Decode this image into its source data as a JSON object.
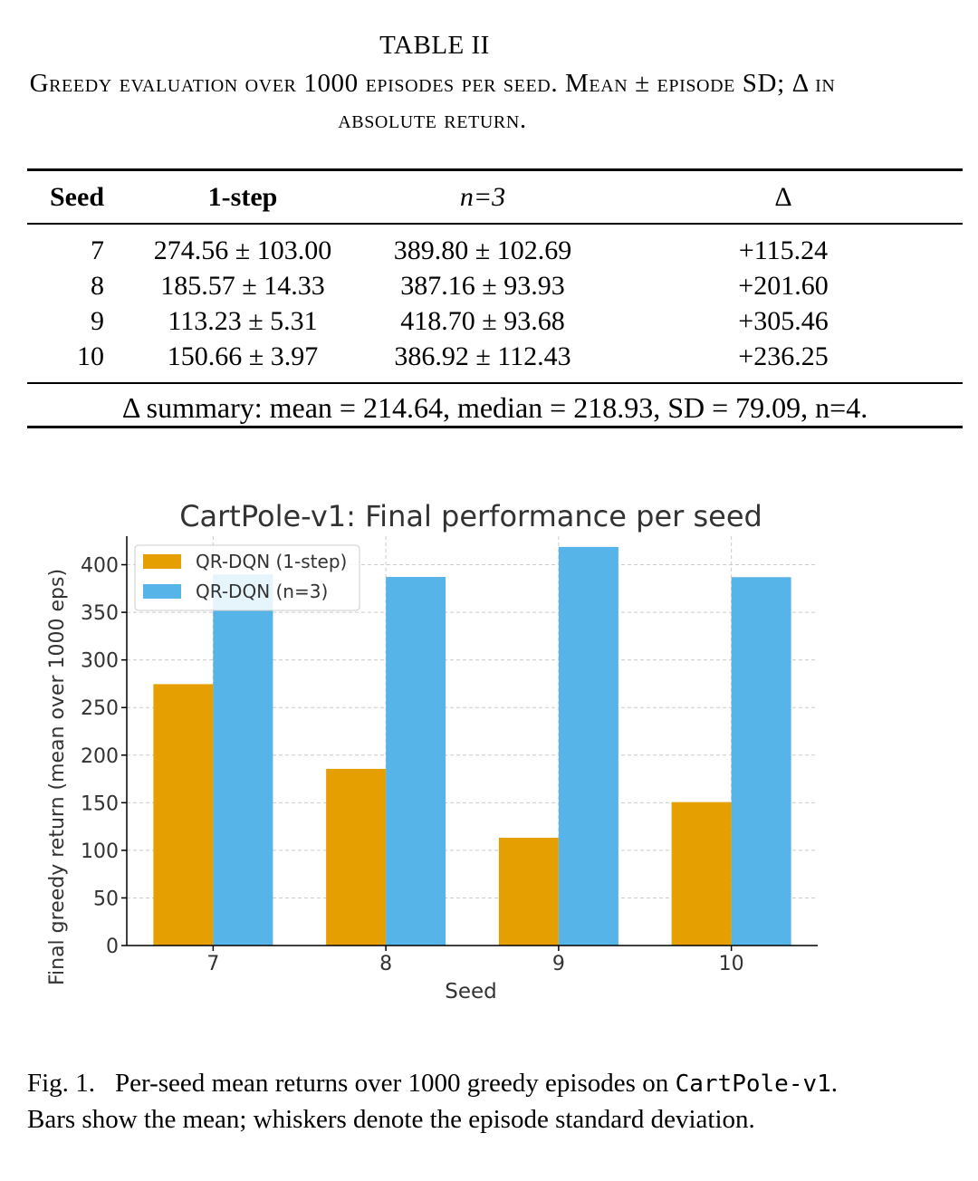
{
  "table": {
    "title": "TABLE II",
    "caption": "Greedy evaluation over 1000 episodes per seed. Mean ± episode SD; Δ in absolute return.",
    "headers": {
      "seed": "Seed",
      "one_step": "1-step",
      "n3": "n=3",
      "delta": "Δ"
    },
    "rows": [
      {
        "seed": "7",
        "one_step": "274.56 ± 103.00",
        "n3": "389.80 ± 102.69",
        "delta": "+115.24"
      },
      {
        "seed": "8",
        "one_step": "185.57 ± 14.33",
        "n3": "387.16 ± 93.93",
        "delta": "+201.60"
      },
      {
        "seed": "9",
        "one_step": "113.23 ± 5.31",
        "n3": "418.70 ± 93.68",
        "delta": "+305.46"
      },
      {
        "seed": "10",
        "one_step": "150.66 ± 3.97",
        "n3": "386.92 ± 112.43",
        "delta": "+236.25"
      }
    ],
    "summary": "Δ summary: mean = 214.64, median = 218.93, SD = 79.09, n=4."
  },
  "chart_data": {
    "type": "bar",
    "title": "CartPole-v1: Final performance per seed",
    "xlabel": "Seed",
    "ylabel": "Final greedy return (mean over 1000 eps)",
    "categories": [
      "7",
      "8",
      "9",
      "10"
    ],
    "series": [
      {
        "name": "QR-DQN (1-step)",
        "color": "#E69F00",
        "values": [
          274.56,
          185.57,
          113.23,
          150.66
        ]
      },
      {
        "name": "QR-DQN (n=3)",
        "color": "#56B4E9",
        "values": [
          389.8,
          387.16,
          418.7,
          386.92
        ]
      }
    ],
    "ylim": [
      0,
      430
    ],
    "yticks": [
      0,
      50,
      100,
      150,
      200,
      250,
      300,
      350,
      400
    ],
    "grid": true,
    "legend": "top-left"
  },
  "figure": {
    "label": "Fig. 1.",
    "text_before": "Per-seed mean returns over 1000 greedy episodes on",
    "env_name": "CartPole-v1",
    "text_after": ". Bars show the mean; whiskers denote the episode standard deviation."
  }
}
